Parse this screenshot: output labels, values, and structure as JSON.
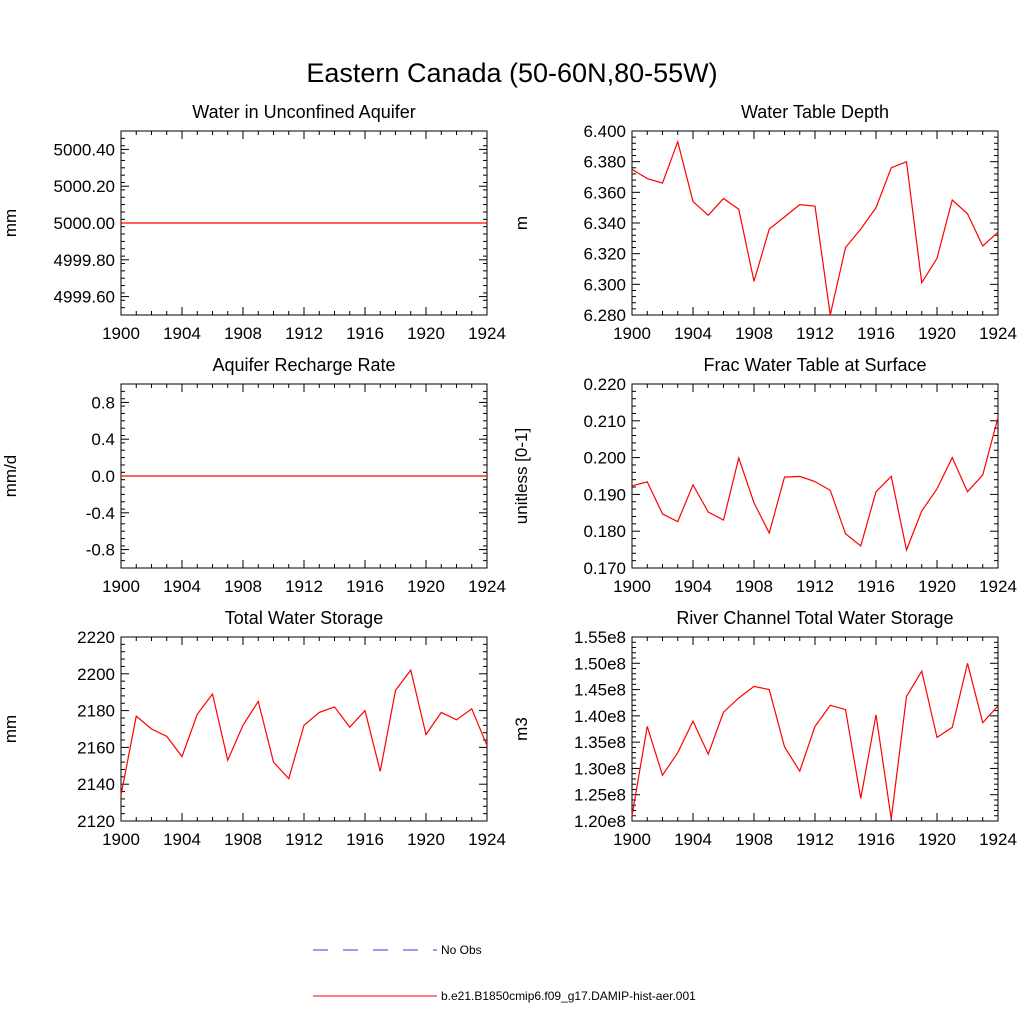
{
  "figure": {
    "title": "Eastern Canada (50-60N,80-55W)"
  },
  "legend": [
    {
      "label": "No Obs",
      "color": "#3a3ad6",
      "style": "dashed"
    },
    {
      "label": "b.e21.B1850cmip6.f09_g17.DAMIP-hist-aer.001",
      "color": "#ff0000",
      "style": "solid"
    }
  ],
  "chart_data": [
    {
      "type": "line",
      "title": "Water in Unconfined Aquifer",
      "ylabel": "mm",
      "xlabel": "",
      "xlim": [
        1900,
        1924
      ],
      "ylim": [
        4999.5,
        5000.5
      ],
      "xticks": [
        1900,
        1904,
        1908,
        1912,
        1916,
        1920,
        1924
      ],
      "yticks": [
        4999.6,
        4999.8,
        5000.0,
        5000.2,
        5000.4
      ],
      "ytick_labels": [
        "4999.60",
        "4999.80",
        "5000.00",
        "5000.20",
        "5000.40"
      ],
      "series": [
        {
          "color": "#ff0000",
          "x": [
            1900,
            1924
          ],
          "values": [
            5000.0,
            5000.0
          ]
        }
      ]
    },
    {
      "type": "line",
      "title": "Water Table Depth",
      "ylabel": "m",
      "xlabel": "",
      "xlim": [
        1900,
        1924
      ],
      "ylim": [
        6.28,
        6.4
      ],
      "xticks": [
        1900,
        1904,
        1908,
        1912,
        1916,
        1920,
        1924
      ],
      "yticks": [
        6.28,
        6.3,
        6.32,
        6.34,
        6.36,
        6.38,
        6.4
      ],
      "ytick_labels": [
        "6.280",
        "6.300",
        "6.320",
        "6.340",
        "6.360",
        "6.380",
        "6.400"
      ],
      "series": [
        {
          "color": "#ff0000",
          "x": [
            1900,
            1901,
            1902,
            1903,
            1904,
            1905,
            1906,
            1907,
            1908,
            1909,
            1910,
            1911,
            1912,
            1913,
            1914,
            1915,
            1916,
            1917,
            1918,
            1919,
            1920,
            1921,
            1922,
            1923,
            1924
          ],
          "values": [
            6.375,
            6.369,
            6.366,
            6.393,
            6.354,
            6.345,
            6.356,
            6.349,
            6.302,
            6.336,
            6.344,
            6.352,
            6.351,
            6.28,
            6.324,
            6.336,
            6.35,
            6.376,
            6.38,
            6.301,
            6.317,
            6.355,
            6.346,
            6.325,
            6.334
          ]
        }
      ]
    },
    {
      "type": "line",
      "title": "Aquifer Recharge Rate",
      "ylabel": "mm/d",
      "xlabel": "",
      "xlim": [
        1900,
        1924
      ],
      "ylim": [
        -1.0,
        1.0
      ],
      "xticks": [
        1900,
        1904,
        1908,
        1912,
        1916,
        1920,
        1924
      ],
      "yticks": [
        -0.8,
        -0.4,
        0.0,
        0.4,
        0.8
      ],
      "ytick_labels": [
        "-0.8",
        "-0.4",
        "0.0",
        "0.4",
        "0.8"
      ],
      "series": [
        {
          "color": "#ff0000",
          "x": [
            1900,
            1924
          ],
          "values": [
            0.0,
            0.0
          ]
        }
      ]
    },
    {
      "type": "line",
      "title": "Frac Water Table at Surface",
      "ylabel": "unitless [0-1]",
      "xlabel": "",
      "xlim": [
        1900,
        1924
      ],
      "ylim": [
        0.17,
        0.22
      ],
      "xticks": [
        1900,
        1904,
        1908,
        1912,
        1916,
        1920,
        1924
      ],
      "yticks": [
        0.17,
        0.18,
        0.19,
        0.2,
        0.21,
        0.22
      ],
      "ytick_labels": [
        "0.170",
        "0.180",
        "0.190",
        "0.200",
        "0.210",
        "0.220"
      ],
      "series": [
        {
          "color": "#ff0000",
          "x": [
            1900,
            1901,
            1902,
            1903,
            1904,
            1905,
            1906,
            1907,
            1908,
            1909,
            1910,
            1911,
            1912,
            1913,
            1914,
            1915,
            1916,
            1917,
            1918,
            1919,
            1920,
            1921,
            1922,
            1923,
            1924
          ],
          "values": [
            0.1923,
            0.1934,
            0.1847,
            0.1826,
            0.1926,
            0.1852,
            0.183,
            0.1999,
            0.1877,
            0.1795,
            0.1947,
            0.1949,
            0.1935,
            0.1911,
            0.1793,
            0.176,
            0.1907,
            0.1949,
            0.1749,
            0.1855,
            0.1915,
            0.2,
            0.1907,
            0.1953,
            0.2109
          ]
        }
      ]
    },
    {
      "type": "line",
      "title": "Total Water Storage",
      "ylabel": "mm",
      "xlabel": "",
      "xlim": [
        1900,
        1924
      ],
      "ylim": [
        2120,
        2220
      ],
      "xticks": [
        1900,
        1904,
        1908,
        1912,
        1916,
        1920,
        1924
      ],
      "yticks": [
        2120,
        2140,
        2160,
        2180,
        2200,
        2220
      ],
      "ytick_labels": [
        "2120",
        "2140",
        "2160",
        "2180",
        "2200",
        "2220"
      ],
      "series": [
        {
          "color": "#ff0000",
          "x": [
            1900,
            1901,
            1902,
            1903,
            1904,
            1905,
            1906,
            1907,
            1908,
            1909,
            1910,
            1911,
            1912,
            1913,
            1914,
            1915,
            1916,
            1917,
            1918,
            1919,
            1920,
            1921,
            1922,
            1923,
            1924
          ],
          "values": [
            2134,
            2177,
            2170,
            2166,
            2155,
            2178,
            2189,
            2153,
            2172,
            2185,
            2152,
            2143,
            2172,
            2179,
            2182,
            2171,
            2180,
            2147,
            2191,
            2202,
            2167,
            2179,
            2175,
            2181,
            2161
          ]
        }
      ]
    },
    {
      "type": "line",
      "title": "River Channel Total Water Storage",
      "ylabel": "m3",
      "xlabel": "",
      "xlim": [
        1900,
        1924
      ],
      "ylim": [
        120000000,
        155000000
      ],
      "xticks": [
        1900,
        1904,
        1908,
        1912,
        1916,
        1920,
        1924
      ],
      "yticks": [
        120000000,
        125000000,
        130000000,
        135000000,
        140000000,
        145000000,
        150000000,
        155000000
      ],
      "ytick_labels": [
        "1.20e8",
        "1.25e8",
        "1.30e8",
        "1.35e8",
        "1.40e8",
        "1.45e8",
        "1.50e8",
        "1.55e8"
      ],
      "series": [
        {
          "color": "#ff0000",
          "x": [
            1900,
            1901,
            1902,
            1903,
            1904,
            1905,
            1906,
            1907,
            1908,
            1909,
            1910,
            1911,
            1912,
            1913,
            1914,
            1915,
            1916,
            1917,
            1918,
            1919,
            1920,
            1921,
            1922,
            1923,
            1924
          ],
          "values": [
            121000000,
            138000000,
            128700000,
            133000000,
            139000000,
            132700000,
            140700000,
            143400000,
            145600000,
            145000000,
            134100000,
            129500000,
            138000000,
            142000000,
            141200000,
            124300000,
            140200000,
            120400000,
            143700000,
            148500000,
            135900000,
            137800000,
            150000000,
            138700000,
            141900000
          ]
        }
      ]
    }
  ]
}
